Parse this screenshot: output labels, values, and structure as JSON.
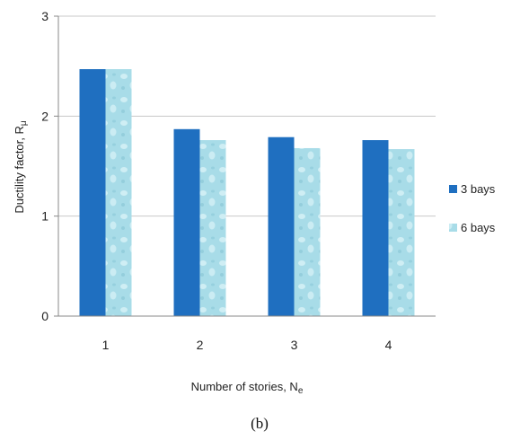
{
  "chart_data": {
    "type": "bar",
    "categories": [
      "1",
      "2",
      "3",
      "4"
    ],
    "series": [
      {
        "name": "3 bays",
        "values": [
          2.47,
          1.87,
          1.79,
          1.76
        ]
      },
      {
        "name": "6 bays",
        "values": [
          2.47,
          1.76,
          1.68,
          1.67
        ]
      }
    ],
    "xlabel_main": "Number of stories, N",
    "xlabel_sub": "e",
    "ylabel_main": "Ductility factor, R",
    "ylabel_sub": "μ",
    "ylim": [
      0,
      3
    ],
    "yticks": [
      "0",
      "1",
      "2",
      "3"
    ],
    "grid": true,
    "legend_position": "right",
    "colors": {
      "series_0": "#1f6fc0",
      "series_1": "#a8dce8",
      "series_1_highlight": "#d6f1f6",
      "axis": "#888888",
      "grid": "#c8c8c8"
    }
  },
  "caption": "(b)"
}
